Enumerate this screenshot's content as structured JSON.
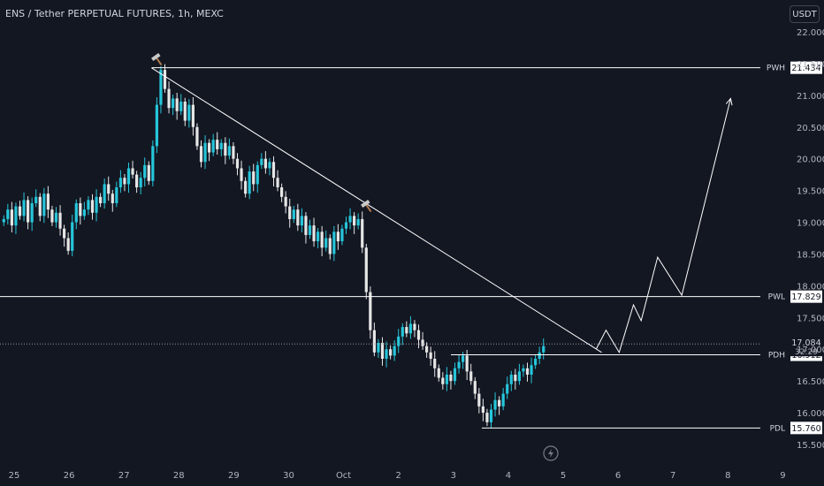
{
  "header": {
    "title": "ENS / Tether PERPETUAL FUTURES, 1h, MEXC",
    "currency_button": "USDT"
  },
  "colors": {
    "background": "#131722",
    "up": "#26c6da",
    "down": "#e6e6e6",
    "line": "#ffffff",
    "hammer": "#b07850"
  },
  "icons": [
    "hammer-icon",
    "lightning-icon"
  ],
  "chart_data": {
    "type": "candlestick",
    "y_ticks": [
      "22.000",
      "21.500",
      "21.000",
      "20.500",
      "20.000",
      "19.500",
      "19.000",
      "18.500",
      "18.000",
      "17.500",
      "17.000",
      "16.500",
      "16.000",
      "15.500"
    ],
    "x_ticks": [
      "25",
      "26",
      "27",
      "28",
      "29",
      "30",
      "Oct",
      "2",
      "3",
      "4",
      "5",
      "6",
      "7",
      "8",
      "9"
    ],
    "ylim": [
      15.35,
      22.25
    ],
    "levels": [
      {
        "tag": "PWH",
        "value": 21.434,
        "label": "21.434"
      },
      {
        "tag": "PWL",
        "value": 17.829,
        "label": "17.829"
      },
      {
        "tag": "PDH",
        "value": 16.912,
        "label": "16.912"
      },
      {
        "tag": "PDL",
        "value": 15.76,
        "label": "15.760"
      }
    ],
    "last_price": {
      "value": 17.084,
      "label": "17.084",
      "countdown": "32:29"
    },
    "trendline": [
      {
        "x": 27.5,
        "y": 21.434
      },
      {
        "x": 4.7,
        "y": 16.95
      }
    ],
    "projection": [
      {
        "x": 4.6,
        "y": 17.0
      },
      {
        "x": 4.78,
        "y": 17.3
      },
      {
        "x": 5.02,
        "y": 16.95
      },
      {
        "x": 5.28,
        "y": 17.7
      },
      {
        "x": 5.42,
        "y": 17.45
      },
      {
        "x": 5.72,
        "y": 18.45
      },
      {
        "x": 6.16,
        "y": 17.85
      },
      {
        "x": 7.05,
        "y": 20.95
      }
    ],
    "candles_close": [
      19.05,
      19.2,
      18.95,
      19.25,
      19.1,
      19.35,
      19.0,
      19.3,
      19.4,
      19.1,
      19.45,
      19.2,
      19.0,
      19.15,
      18.9,
      18.75,
      18.55,
      19.0,
      19.3,
      19.1,
      19.2,
      19.35,
      19.15,
      19.4,
      19.3,
      19.6,
      19.45,
      19.3,
      19.55,
      19.7,
      19.6,
      19.85,
      19.75,
      19.55,
      19.7,
      19.9,
      19.65,
      20.2,
      20.85,
      21.4,
      21.1,
      20.8,
      20.95,
      20.75,
      20.9,
      20.6,
      20.85,
      20.5,
      20.2,
      19.95,
      20.25,
      20.1,
      20.3,
      20.15,
      20.25,
      20.05,
      20.2,
      20.0,
      19.85,
      19.65,
      19.45,
      19.8,
      19.6,
      19.9,
      20.0,
      19.85,
      19.95,
      19.7,
      19.55,
      19.4,
      19.25,
      19.05,
      19.2,
      18.95,
      19.1,
      18.8,
      18.95,
      18.7,
      18.85,
      18.6,
      18.75,
      18.5,
      18.85,
      18.7,
      18.9,
      19.0,
      19.1,
      18.95,
      19.05,
      18.6,
      17.9,
      17.3,
      16.95,
      17.1,
      16.85,
      17.0,
      16.9,
      17.05,
      17.2,
      17.35,
      17.25,
      17.4,
      17.3,
      17.15,
      17.05,
      16.95,
      16.85,
      16.7,
      16.55,
      16.45,
      16.6,
      16.5,
      16.7,
      16.8,
      16.9,
      16.65,
      16.5,
      16.3,
      16.1,
      16.0,
      15.85,
      16.05,
      16.2,
      16.1,
      16.3,
      16.45,
      16.6,
      16.5,
      16.65,
      16.7,
      16.6,
      16.75,
      16.85,
      16.95,
      17.05
    ]
  }
}
